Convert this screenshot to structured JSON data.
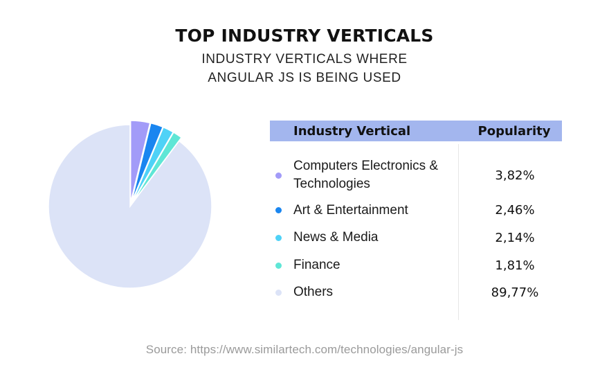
{
  "header": {
    "title": "TOP INDUSTRY VERTICALS",
    "subtitle_line1": "INDUSTRY VERTICALS WHERE",
    "subtitle_line2": "ANGULAR JS IS BEING USED"
  },
  "table": {
    "col_vertical": "Industry Vertical",
    "col_popularity": "Popularity",
    "header_color": "#a3b6ee"
  },
  "chart_data": {
    "type": "pie",
    "categories": [
      "Computers Electronics & Technologies",
      "Art & Entertainment",
      "News & Media",
      "Finance",
      "Others"
    ],
    "values": [
      3.82,
      2.46,
      2.14,
      1.81,
      89.77
    ],
    "value_labels": [
      "3,82%",
      "2,46%",
      "2,14%",
      "1,81%",
      "89,77%"
    ],
    "colors": [
      "#a29bf8",
      "#1a86f0",
      "#4fd2f7",
      "#5fe6d6",
      "#dce3f7"
    ],
    "exploded": [
      true,
      true,
      true,
      true,
      false
    ],
    "legend_position": "right"
  },
  "footer": {
    "source": "Source: https://www.similartech.com/technologies/angular-js"
  }
}
